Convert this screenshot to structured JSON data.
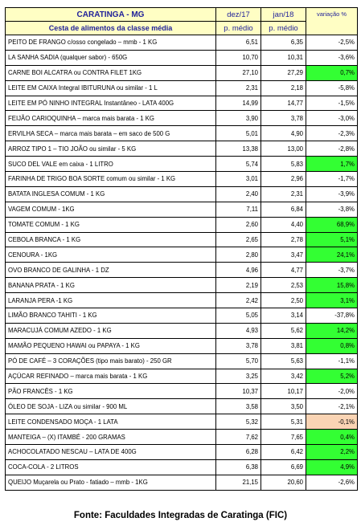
{
  "header": {
    "title": "CARATINGA - MG",
    "subtitle": "Cesta de alimentos da classe média",
    "col1_top": "dez/17",
    "col1_bottom": "p. médio",
    "col2_top": "jan/18",
    "col2_bottom": "p. médio",
    "col3": "variação %"
  },
  "rows": [
    {
      "name": "PEITO DE FRANGO c/osso congelado – mmb - 1 KG",
      "dec": "6,51",
      "jan": "6,35",
      "var": "-2,5%",
      "trend": "neg"
    },
    {
      "name": "LA SANHA SADIA (qualquer sabor) - 650G",
      "dec": "10,70",
      "jan": "10,31",
      "var": "-3,6%",
      "trend": "neg"
    },
    {
      "name": "CARNE BOI ALCATRA ou CONTRA FILET 1KG",
      "dec": "27,10",
      "jan": "27,29",
      "var": "0,7%",
      "trend": "pos"
    },
    {
      "name": "LEITE EM CAIXA Integral IBITURUNA ou similar - 1 L",
      "dec": "2,31",
      "jan": "2,18",
      "var": "-5,8%",
      "trend": "neg"
    },
    {
      "name": "LEITE EM PÓ NINHO INTEGRAL Instantâneo - LATA 400G",
      "dec": "14,99",
      "jan": "14,77",
      "var": "-1,5%",
      "trend": "neg"
    },
    {
      "name": "FEIJÃO CARIOQUINHA – marca mais barata - 1 KG",
      "dec": "3,90",
      "jan": "3,78",
      "var": "-3,0%",
      "trend": "neg"
    },
    {
      "name": "ERVILHA SECA – marca mais barata – em saco de 500 G",
      "dec": "5,01",
      "jan": "4,90",
      "var": "-2,3%",
      "trend": "neg"
    },
    {
      "name": "ARROZ TIPO 1 – TIO JOÃO ou similar - 5 KG",
      "dec": "13,38",
      "jan": "13,00",
      "var": "-2,8%",
      "trend": "neg"
    },
    {
      "name": "SUCO DEL VALE em caixa - 1 LITRO",
      "dec": "5,74",
      "jan": "5,83",
      "var": "1,7%",
      "trend": "pos"
    },
    {
      "name": "FARINHA DE TRIGO BOA SORTE comum ou similar - 1 KG",
      "dec": "3,01",
      "jan": "2,96",
      "var": "-1,7%",
      "trend": "neg"
    },
    {
      "name": "BATATA INGLESA COMUM - 1 KG",
      "dec": "2,40",
      "jan": "2,31",
      "var": "-3,9%",
      "trend": "neg"
    },
    {
      "name": "VAGEM COMUM - 1KG",
      "dec": "7,11",
      "jan": "6,84",
      "var": "-3,8%",
      "trend": "neg"
    },
    {
      "name": "TOMATE COMUM - 1 KG",
      "dec": "2,60",
      "jan": "4,40",
      "var": "68,9%",
      "trend": "pos"
    },
    {
      "name": "CEBOLA BRANCA - 1 KG",
      "dec": "2,65",
      "jan": "2,78",
      "var": "5,1%",
      "trend": "pos"
    },
    {
      "name": "CENOURA - 1KG",
      "dec": "2,80",
      "jan": "3,47",
      "var": "24,1%",
      "trend": "pos"
    },
    {
      "name": "OVO BRANCO DE GALINHA - 1 DZ",
      "dec": "4,96",
      "jan": "4,77",
      "var": "-3,7%",
      "trend": "neg"
    },
    {
      "name": "BANANA PRATA - 1 KG",
      "dec": "2,19",
      "jan": "2,53",
      "var": "15,8%",
      "trend": "pos"
    },
    {
      "name": "LARANJA PERA -1 KG",
      "dec": "2,42",
      "jan": "2,50",
      "var": "3,1%",
      "trend": "pos"
    },
    {
      "name": "LIMÃO BRANCO TAHITI - 1 KG",
      "dec": "5,05",
      "jan": "3,14",
      "var": "-37,8%",
      "trend": "neg"
    },
    {
      "name": "MARACUJÁ COMUM AZEDO - 1 KG",
      "dec": "4,93",
      "jan": "5,62",
      "var": "14,2%",
      "trend": "pos"
    },
    {
      "name": "MAMÃO PEQUENO HAWAI ou PAPAYA - 1 KG",
      "dec": "3,78",
      "jan": "3,81",
      "var": "0,8%",
      "trend": "pos"
    },
    {
      "name": "PÓ DE CAFÉ – 3 CORAÇÕES (tipo mais barato) - 250 GR",
      "dec": "5,70",
      "jan": "5,63",
      "var": "-1,1%",
      "trend": "neg"
    },
    {
      "name": "AÇÚCAR REFINADO – marca mais barata - 1 KG",
      "dec": "3,25",
      "jan": "3,42",
      "var": "5,2%",
      "trend": "pos"
    },
    {
      "name": "PÃO FRANCÊS - 1 KG",
      "dec": "10,37",
      "jan": "10,17",
      "var": "-2,0%",
      "trend": "neg"
    },
    {
      "name": "ÓLEO DE SOJA - LIZA ou similar - 900 ML",
      "dec": "3,58",
      "jan": "3,50",
      "var": "-2,1%",
      "trend": "neg"
    },
    {
      "name": "LEITE CONDENSADO MOÇA - 1 LATA",
      "dec": "5,32",
      "jan": "5,31",
      "var": "-0,1%",
      "trend": "warn"
    },
    {
      "name": "MANTEIGA – (X) ITAMBÉ - 200 GRAMAS",
      "dec": "7,62",
      "jan": "7,65",
      "var": "0,4%",
      "trend": "pos"
    },
    {
      "name": "ACHOCOLATADO NESCAU – LATA DE 400G",
      "dec": "6,28",
      "jan": "6,42",
      "var": "2,2%",
      "trend": "pos"
    },
    {
      "name": "COCA-COLA - 2 LITROS",
      "dec": "6,38",
      "jan": "6,69",
      "var": "4,9%",
      "trend": "pos"
    },
    {
      "name": "QUEIJO Muçarela ou Prato - fatiado – mmb - 1KG",
      "dec": "21,15",
      "jan": "20,60",
      "var": "-2,6%",
      "trend": "neg"
    }
  ],
  "source": "Fonte: Faculdades Integradas de Caratinga (FIC)",
  "colors": {
    "header_bg": "#fffec4",
    "header_text": "#1f1f99",
    "positive_bg": "#33ff33",
    "negative_text": "#ff0000",
    "warn_bg": "#fad4b4"
  }
}
